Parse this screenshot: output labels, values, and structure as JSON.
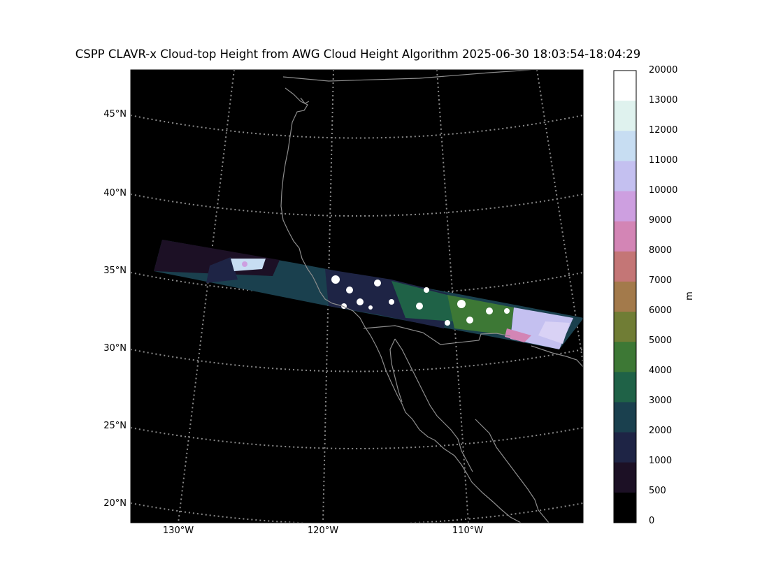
{
  "title": "CSPP CLAVR-x Cloud-top Height from AWG Cloud Height Algorithm 2025-06-30 18:03:54-18:04:29",
  "lat_labels": [
    "45°N",
    "40°N",
    "35°N",
    "30°N",
    "25°N",
    "20°N"
  ],
  "lon_labels": [
    "130°W",
    "120°W",
    "110°W"
  ],
  "colorbar": {
    "units": "m",
    "tick_labels": [
      "20000",
      "13000",
      "12000",
      "11000",
      "10000",
      "9000",
      "8000",
      "7000",
      "6000",
      "5000",
      "4000",
      "3000",
      "2000",
      "1000",
      "500",
      "0"
    ],
    "colors": [
      "#ffffff",
      "#dff2ee",
      "#c7ddf2",
      "#c4c0f0",
      "#cd9fe0",
      "#d385b5",
      "#c47676",
      "#a37a4b",
      "#707d35",
      "#3d7835",
      "#1f6247",
      "#1a404e",
      "#1e2445",
      "#1c1025",
      "#000000"
    ]
  },
  "map": {
    "background": "#000000",
    "gridline_color": "#8a8a8a",
    "coastline_color": "#8c8c8c"
  }
}
